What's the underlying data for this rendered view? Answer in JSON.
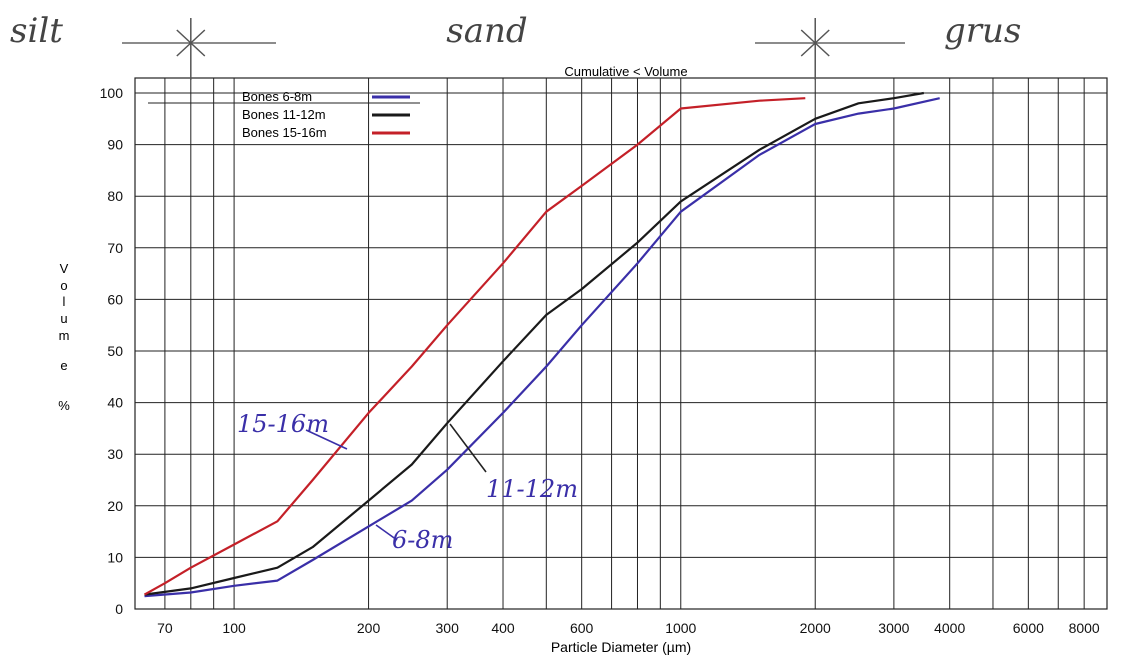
{
  "chart_data": {
    "type": "line",
    "title": "Cumulative < Volume",
    "xlabel": "Particle Diameter (µm)",
    "ylabel_letters": [
      "V",
      "o",
      "l",
      "u",
      "m",
      "e"
    ],
    "ylabel_unit": "%",
    "x_scale": "log",
    "xlim": [
      60,
      9000
    ],
    "ylim": [
      0,
      100
    ],
    "grid": true,
    "legend_position": "top-left",
    "x_ticks": [
      {
        "value": 70,
        "label": "70"
      },
      {
        "value": 100,
        "label": "100"
      },
      {
        "value": 200,
        "label": "200"
      },
      {
        "value": 300,
        "label": "300"
      },
      {
        "value": 400,
        "label": "400"
      },
      {
        "value": 600,
        "label": "600"
      },
      {
        "value": 1000,
        "label": "1000"
      },
      {
        "value": 2000,
        "label": "2000"
      },
      {
        "value": 3000,
        "label": "3000"
      },
      {
        "value": 4000,
        "label": "4000"
      },
      {
        "value": 6000,
        "label": "6000"
      },
      {
        "value": 8000,
        "label": "8000"
      }
    ],
    "x_minor": [
      60,
      80,
      90,
      500,
      700,
      800,
      900,
      5000,
      7000,
      9000
    ],
    "y_ticks": [
      0,
      10,
      20,
      30,
      40,
      50,
      60,
      70,
      80,
      90,
      100
    ],
    "series": [
      {
        "name": "Bones 6-8m",
        "color": "#3a2fa8",
        "points": [
          [
            63,
            2.5
          ],
          [
            80,
            3.2
          ],
          [
            100,
            4.5
          ],
          [
            125,
            5.5
          ],
          [
            150,
            9.5
          ],
          [
            200,
            16
          ],
          [
            250,
            21
          ],
          [
            300,
            27
          ],
          [
            400,
            38
          ],
          [
            500,
            47
          ],
          [
            600,
            55
          ],
          [
            800,
            67
          ],
          [
            1000,
            77
          ],
          [
            1500,
            88
          ],
          [
            2000,
            94
          ],
          [
            2500,
            96
          ],
          [
            3000,
            97
          ],
          [
            3800,
            99
          ]
        ]
      },
      {
        "name": "Bones 11-12m",
        "color": "#1a1a1a",
        "points": [
          [
            63,
            2.8
          ],
          [
            80,
            4
          ],
          [
            100,
            6
          ],
          [
            125,
            8
          ],
          [
            150,
            12
          ],
          [
            200,
            21
          ],
          [
            250,
            28
          ],
          [
            300,
            36
          ],
          [
            400,
            48
          ],
          [
            500,
            57
          ],
          [
            600,
            62
          ],
          [
            800,
            71
          ],
          [
            1000,
            79
          ],
          [
            1500,
            89
          ],
          [
            2000,
            95
          ],
          [
            2500,
            98
          ],
          [
            3000,
            99
          ],
          [
            3500,
            100
          ]
        ]
      },
      {
        "name": "Bones 15-16m",
        "color": "#c42028",
        "points": [
          [
            63,
            2.8
          ],
          [
            70,
            5
          ],
          [
            80,
            8
          ],
          [
            100,
            12.5
          ],
          [
            125,
            17
          ],
          [
            150,
            25
          ],
          [
            200,
            38
          ],
          [
            250,
            47
          ],
          [
            300,
            55
          ],
          [
            400,
            67
          ],
          [
            500,
            77
          ],
          [
            600,
            82
          ],
          [
            800,
            90
          ],
          [
            1000,
            97
          ],
          [
            1500,
            98.5
          ],
          [
            1900,
            99
          ]
        ]
      }
    ],
    "annotations": {
      "zones": [
        "silt",
        "sand",
        "grus"
      ],
      "zone_boundaries_um": [
        80,
        2000
      ],
      "curve_labels": [
        {
          "text": "15-16m",
          "x": 140,
          "y": 35
        },
        {
          "text": "11-12m",
          "x": 420,
          "y": 22
        },
        {
          "text": "6-8m",
          "x": 270,
          "y": 13
        }
      ]
    }
  }
}
